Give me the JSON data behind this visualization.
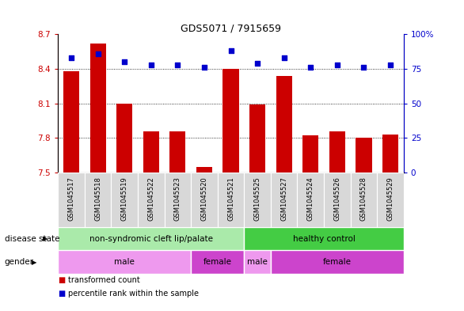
{
  "title": "GDS5071 / 7915659",
  "samples": [
    "GSM1045517",
    "GSM1045518",
    "GSM1045519",
    "GSM1045522",
    "GSM1045523",
    "GSM1045520",
    "GSM1045521",
    "GSM1045525",
    "GSM1045527",
    "GSM1045524",
    "GSM1045526",
    "GSM1045528",
    "GSM1045529"
  ],
  "bar_values": [
    8.38,
    8.62,
    8.1,
    7.86,
    7.86,
    7.55,
    8.4,
    8.09,
    8.34,
    7.82,
    7.86,
    7.8,
    7.83
  ],
  "percentile_values": [
    83,
    86,
    80,
    78,
    78,
    76,
    88,
    79,
    83,
    76,
    78,
    76,
    78
  ],
  "ylim_left": [
    7.5,
    8.7
  ],
  "ylim_right": [
    0,
    100
  ],
  "yticks_left": [
    7.5,
    7.8,
    8.1,
    8.4,
    8.7
  ],
  "yticks_right": [
    0,
    25,
    50,
    75,
    100
  ],
  "bar_color": "#cc0000",
  "dot_color": "#0000cc",
  "bar_width": 0.6,
  "disease_state_groups": [
    {
      "label": "non-syndromic cleft lip/palate",
      "start": 0,
      "end": 7,
      "color": "#aaeaaa"
    },
    {
      "label": "healthy control",
      "start": 7,
      "end": 13,
      "color": "#44cc44"
    }
  ],
  "gender_groups": [
    {
      "label": "male",
      "start": 0,
      "end": 5,
      "color": "#ee99ee"
    },
    {
      "label": "female",
      "start": 5,
      "end": 7,
      "color": "#cc44cc"
    },
    {
      "label": "male",
      "start": 7,
      "end": 8,
      "color": "#ee99ee"
    },
    {
      "label": "female",
      "start": 8,
      "end": 13,
      "color": "#cc44cc"
    }
  ],
  "legend_items": [
    {
      "label": "transformed count",
      "color": "#cc0000"
    },
    {
      "label": "percentile rank within the sample",
      "color": "#0000cc"
    }
  ],
  "grid_dotted_values": [
    7.8,
    8.1,
    8.4
  ],
  "row_label_disease": "disease state",
  "row_label_gender": "gender",
  "background_color": "#ffffff",
  "tick_color_left": "#cc0000",
  "tick_color_right": "#0000cc",
  "xticklabel_bg": "#d8d8d8"
}
